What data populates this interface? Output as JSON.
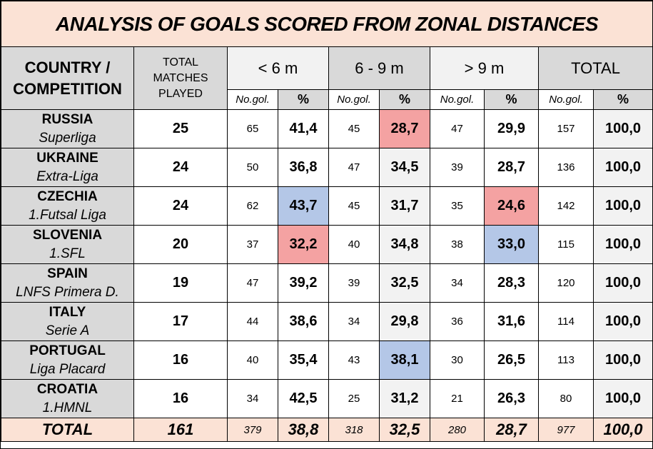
{
  "title": "ANALYSIS OF GOALS SCORED FROM ZONAL DISTANCES",
  "headers": {
    "country_line1": "COUNTRY /",
    "country_line2": "COMPETITION",
    "matches_line1": "TOTAL",
    "matches_line2": "MATCHES",
    "matches_line3": "PLAYED",
    "zone1": "< 6 m",
    "zone2": "6 - 9 m",
    "zone3": "> 9 m",
    "total": "TOTAL",
    "no_gol": "No.gol.",
    "pct": "%"
  },
  "rows": [
    {
      "country": "RUSSIA",
      "competition": "Superliga",
      "matches": "25",
      "z1_no": "65",
      "z1_pct": "41,4",
      "z2_no": "45",
      "z2_pct": "28,7",
      "z3_no": "47",
      "z3_pct": "29,9",
      "t_no": "157",
      "t_pct": "100,0"
    },
    {
      "country": "UKRAINE",
      "competition": "Extra-Liga",
      "matches": "24",
      "z1_no": "50",
      "z1_pct": "36,8",
      "z2_no": "47",
      "z2_pct": "34,5",
      "z3_no": "39",
      "z3_pct": "28,7",
      "t_no": "136",
      "t_pct": "100,0"
    },
    {
      "country": "CZECHIA",
      "competition": "1.Futsal Liga",
      "matches": "24",
      "z1_no": "62",
      "z1_pct": "43,7",
      "z2_no": "45",
      "z2_pct": "31,7",
      "z3_no": "35",
      "z3_pct": "24,6",
      "t_no": "142",
      "t_pct": "100,0"
    },
    {
      "country": "SLOVENIA",
      "competition": "1.SFL",
      "matches": "20",
      "z1_no": "37",
      "z1_pct": "32,2",
      "z2_no": "40",
      "z2_pct": "34,8",
      "z3_no": "38",
      "z3_pct": "33,0",
      "t_no": "115",
      "t_pct": "100,0"
    },
    {
      "country": "SPAIN",
      "competition": "LNFS Primera D.",
      "matches": "19",
      "z1_no": "47",
      "z1_pct": "39,2",
      "z2_no": "39",
      "z2_pct": "32,5",
      "z3_no": "34",
      "z3_pct": "28,3",
      "t_no": "120",
      "t_pct": "100,0"
    },
    {
      "country": "ITALY",
      "competition": "Serie A",
      "matches": "17",
      "z1_no": "44",
      "z1_pct": "38,6",
      "z2_no": "34",
      "z2_pct": "29,8",
      "z3_no": "36",
      "z3_pct": "31,6",
      "t_no": "114",
      "t_pct": "100,0"
    },
    {
      "country": "PORTUGAL",
      "competition": "Liga Placard",
      "matches": "16",
      "z1_no": "40",
      "z1_pct": "35,4",
      "z2_no": "43",
      "z2_pct": "38,1",
      "z3_no": "30",
      "z3_pct": "26,5",
      "t_no": "113",
      "t_pct": "100,0"
    },
    {
      "country": "CROATIA",
      "competition": "1.HMNL",
      "matches": "16",
      "z1_no": "34",
      "z1_pct": "42,5",
      "z2_no": "25",
      "z2_pct": "31,2",
      "z3_no": "21",
      "z3_pct": "26,3",
      "t_no": "80",
      "t_pct": "100,0"
    }
  ],
  "totals": {
    "label": "TOTAL",
    "matches": "161",
    "z1_no": "379",
    "z1_pct": "38,8",
    "z2_no": "318",
    "z2_pct": "32,5",
    "z3_no": "280",
    "z3_pct": "28,7",
    "t_no": "977",
    "t_pct": "100,0"
  },
  "colors": {
    "title_bg": "#fbe2d5",
    "header_bg": "#d9d9d9",
    "highlight_red": "#f4a2a2",
    "highlight_blue": "#b4c7e7"
  }
}
